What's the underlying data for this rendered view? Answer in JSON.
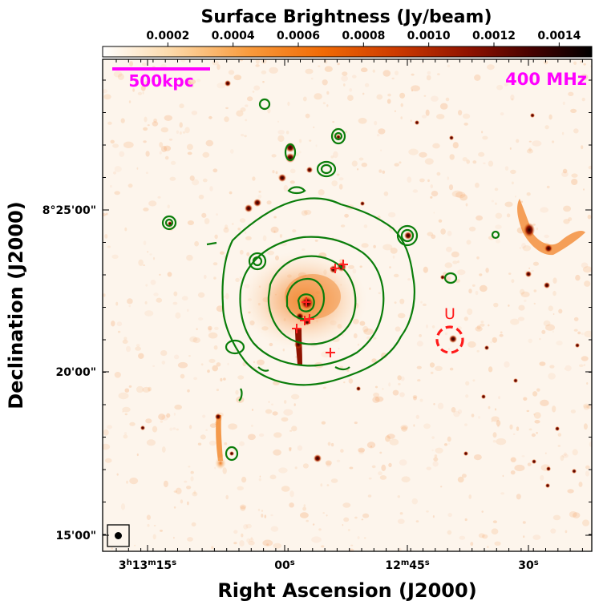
{
  "chart_data": {
    "type": "heatmap",
    "colorbar": {
      "title": "Surface Brightness (Jy/beam)",
      "min": 0.0,
      "max": 0.0015,
      "ticks": [
        "0.0002",
        "0.0004",
        "0.0006",
        "0.0008",
        "0.0010",
        "0.0012",
        "0.0014"
      ],
      "tick_values": [
        0.0002,
        0.0004,
        0.0006,
        0.0008,
        0.001,
        0.0012,
        0.0014
      ],
      "colors": [
        "#ffffff",
        "#fcd9a9",
        "#f89a3c",
        "#f06a05",
        "#cc3a00",
        "#8e1200",
        "#440000",
        "#000000"
      ]
    },
    "xlabel": "Right Ascension (J2000)",
    "ylabel": "Declination (J2000)",
    "x_ticks": [
      {
        "label_h": "3",
        "label_m": "13",
        "label_s": "15",
        "format": "hms"
      },
      {
        "label_s": "00",
        "format": "s"
      },
      {
        "label_m": "12",
        "label_s": "45",
        "format": "ms"
      },
      {
        "label_s": "30",
        "format": "s"
      }
    ],
    "y_ticks": [
      "8°25'00\"",
      "20'00\"",
      "15'00\""
    ],
    "annotations": {
      "scalebar_label": "500kpc",
      "frequency_label": "400 MHz",
      "source_label": "U"
    },
    "colors": {
      "contour": "#0a7d0a",
      "magenta": "#ff00ff",
      "marker": "#ff2020",
      "source_circle": "#ff1a1a"
    },
    "contour_levels": 5
  }
}
